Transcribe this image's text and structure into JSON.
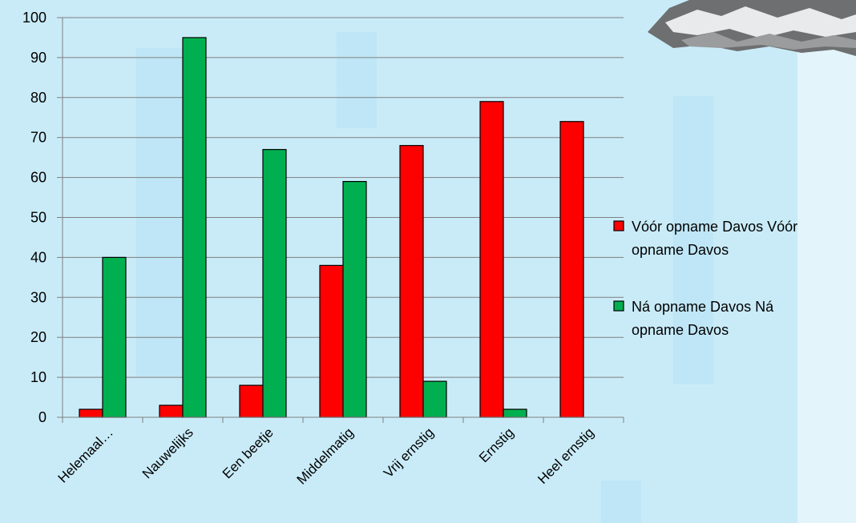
{
  "chart_data": {
    "type": "bar",
    "title": "",
    "xlabel": "",
    "ylabel": "",
    "ylim": [
      0,
      100
    ],
    "yticks": [
      0,
      10,
      20,
      30,
      40,
      50,
      60,
      70,
      80,
      90,
      100
    ],
    "grid": true,
    "legend_position": "right",
    "categories": [
      "Helemaal…",
      "Nauwelijks",
      "Een beetje",
      "Middelmatig",
      "Vrij ernstig",
      "Ernstig",
      "Heel ernstig"
    ],
    "series": [
      {
        "name": "Vóór opname Davos Vóór opname Davos",
        "legend_lines": [
          "Vóór opname Davos Vóór",
          "opname Davos"
        ],
        "color": "#ff0000",
        "values": [
          2,
          3,
          8,
          38,
          68,
          79,
          74
        ]
      },
      {
        "name": "Ná opname Davos Ná opname Davos",
        "legend_lines": [
          "Ná opname Davos Ná",
          "opname Davos"
        ],
        "color": "#00b050",
        "values": [
          40,
          95,
          67,
          59,
          9,
          2,
          null
        ]
      }
    ]
  },
  "colors": {
    "background": "#c9ebf8",
    "watermark": "#b9e3f4",
    "right_panel": "#e3f4fb",
    "grid": "#7f7f7f",
    "bar_outline": "#000000"
  }
}
